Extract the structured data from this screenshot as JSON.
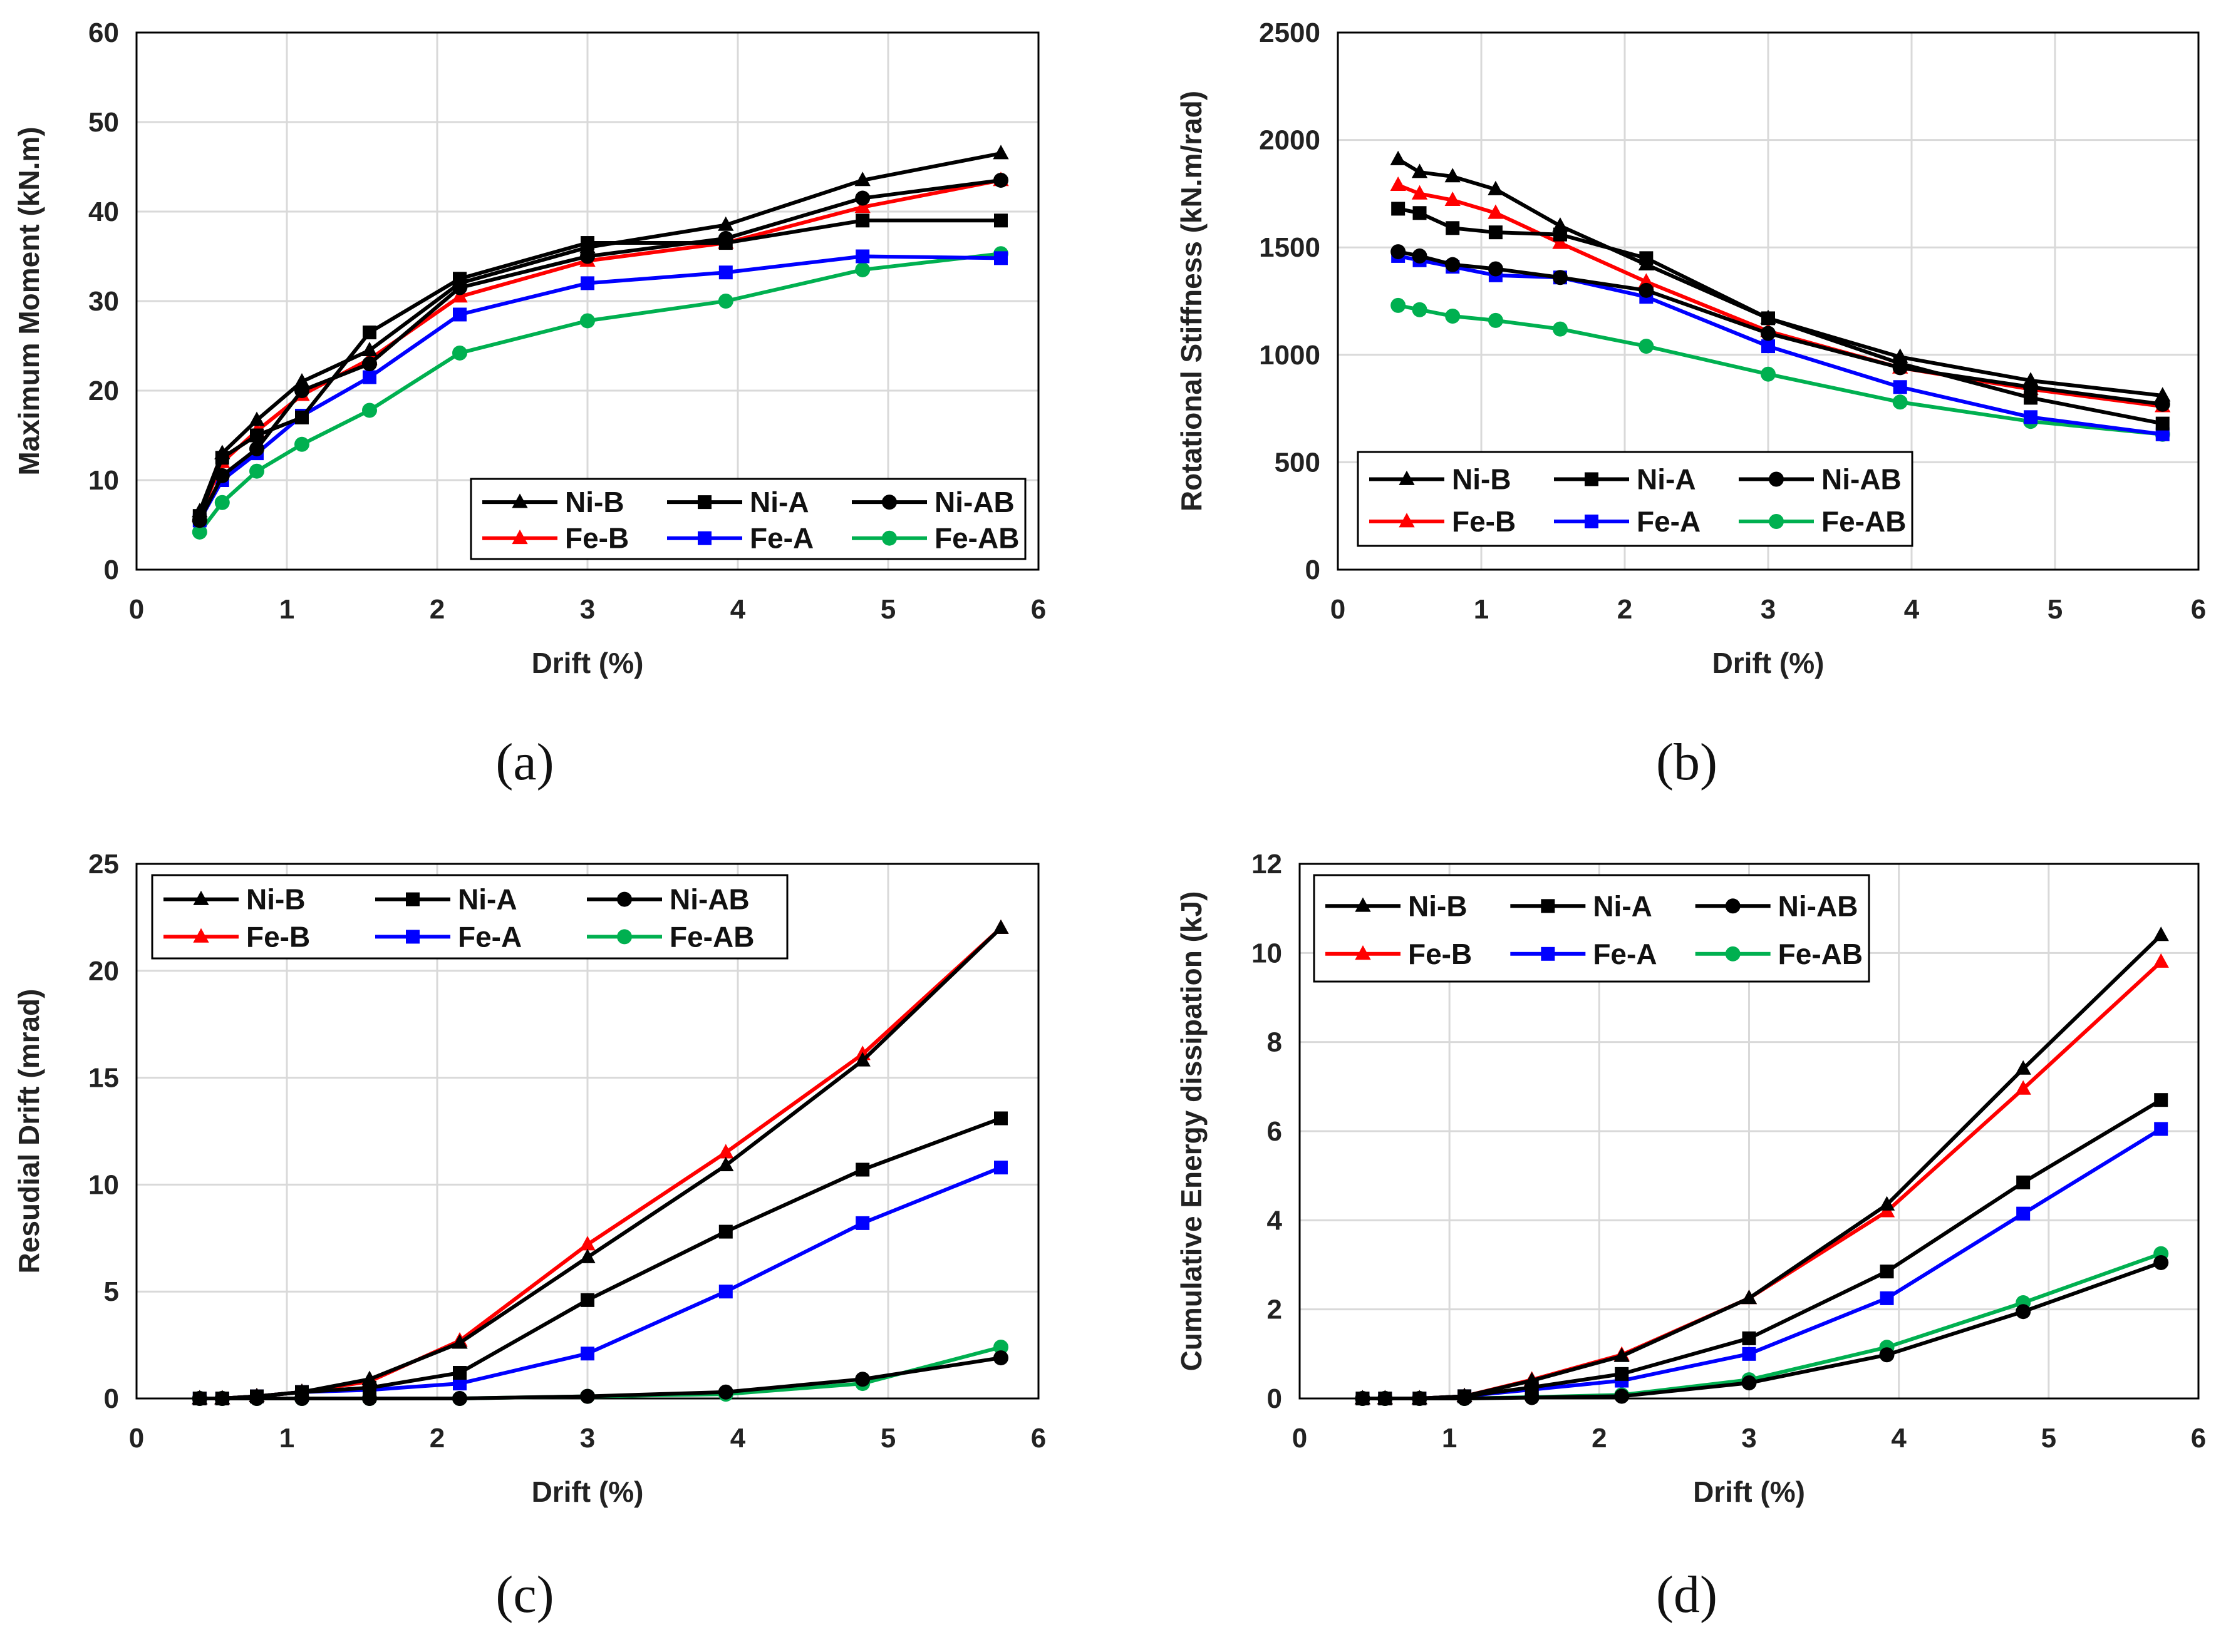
{
  "colors": {
    "Ni-B": "#000000",
    "Ni-A": "#000000",
    "Ni-AB": "#000000",
    "Fe-B": "#ff0000",
    "Fe-A": "#0000ff",
    "Fe-AB": "#00b050",
    "grid": "#d9d9d9",
    "frame": "#000000"
  },
  "markers": {
    "Ni-B": "triangle",
    "Ni-A": "square",
    "Ni-AB": "circle",
    "Fe-B": "triangle",
    "Fe-A": "square",
    "Fe-AB": "circle"
  },
  "chart_data": [
    {
      "panel_label": "(a)",
      "type": "line",
      "xlabel": "Drift (%)",
      "ylabel": "Maximum Moment (kN.m)",
      "xlim": [
        0,
        6
      ],
      "ylim": [
        0,
        60
      ],
      "xticks": [
        0,
        1,
        2,
        3,
        4,
        5,
        6
      ],
      "yticks": [
        0,
        10,
        20,
        30,
        40,
        50,
        60
      ],
      "grid": true,
      "legend_position": "bottom-right",
      "x": [
        0.42,
        0.57,
        0.8,
        1.1,
        1.55,
        2.15,
        3.0,
        3.92,
        4.83,
        5.75
      ],
      "series": [
        {
          "name": "Ni-B",
          "values": [
            6.5,
            13.0,
            16.7,
            21.0,
            24.5,
            32.0,
            36.0,
            38.5,
            43.5,
            46.5
          ]
        },
        {
          "name": "Ni-A",
          "values": [
            6.0,
            12.5,
            15.0,
            17.0,
            26.5,
            32.5,
            36.5,
            36.5,
            39.0,
            39.0
          ]
        },
        {
          "name": "Ni-AB",
          "values": [
            5.5,
            10.5,
            13.5,
            20.0,
            23.0,
            31.5,
            35.0,
            37.0,
            41.5,
            43.5
          ]
        },
        {
          "name": "Fe-B",
          "values": [
            6.0,
            12.0,
            15.5,
            19.5,
            23.5,
            30.5,
            34.5,
            36.5,
            40.5,
            43.5
          ]
        },
        {
          "name": "Fe-A",
          "values": [
            5.5,
            10.0,
            13.0,
            17.2,
            21.5,
            28.5,
            32.0,
            33.2,
            35.0,
            34.8
          ]
        },
        {
          "name": "Fe-AB",
          "values": [
            4.2,
            7.5,
            11.0,
            14.0,
            17.8,
            24.2,
            27.8,
            30.0,
            33.5,
            35.3
          ]
        }
      ]
    },
    {
      "panel_label": "(b)",
      "type": "line",
      "xlabel": "Drift (%)",
      "ylabel": "Rotational Stiffness (kN.m/rad)",
      "xlim": [
        0,
        6
      ],
      "ylim": [
        0,
        2500
      ],
      "xticks": [
        0,
        1,
        2,
        3,
        4,
        5,
        6
      ],
      "yticks": [
        0,
        500,
        1000,
        1500,
        2000,
        2500
      ],
      "grid": true,
      "legend_position": "bottom-left",
      "x": [
        0.42,
        0.57,
        0.8,
        1.1,
        1.55,
        2.15,
        3.0,
        3.92,
        4.83,
        5.75
      ],
      "series": [
        {
          "name": "Ni-B",
          "values": [
            1910,
            1850,
            1830,
            1770,
            1600,
            1420,
            1170,
            990,
            880,
            810
          ]
        },
        {
          "name": "Ni-A",
          "values": [
            1680,
            1660,
            1590,
            1570,
            1560,
            1450,
            1170,
            960,
            800,
            680
          ]
        },
        {
          "name": "Ni-AB",
          "values": [
            1480,
            1460,
            1420,
            1400,
            1360,
            1300,
            1100,
            940,
            850,
            770
          ]
        },
        {
          "name": "Fe-B",
          "values": [
            1790,
            1750,
            1720,
            1660,
            1520,
            1340,
            1110,
            940,
            840,
            760
          ]
        },
        {
          "name": "Fe-A",
          "values": [
            1460,
            1440,
            1410,
            1370,
            1360,
            1270,
            1040,
            850,
            710,
            630
          ]
        },
        {
          "name": "Fe-AB",
          "values": [
            1230,
            1210,
            1180,
            1160,
            1120,
            1040,
            910,
            780,
            690,
            630
          ]
        }
      ]
    },
    {
      "panel_label": "(c)",
      "type": "line",
      "xlabel": "Drift (%)",
      "ylabel": "Resudial Drift (mrad)",
      "xlim": [
        0,
        6
      ],
      "ylim": [
        0,
        25
      ],
      "xticks": [
        0,
        1,
        2,
        3,
        4,
        5,
        6
      ],
      "yticks": [
        0,
        5,
        10,
        15,
        20,
        25
      ],
      "grid": true,
      "legend_position": "top-left",
      "x": [
        0.42,
        0.57,
        0.8,
        1.1,
        1.55,
        2.15,
        3.0,
        3.92,
        4.83,
        5.75
      ],
      "series": [
        {
          "name": "Ni-B",
          "values": [
            0,
            0,
            0.1,
            0.3,
            0.9,
            2.6,
            6.6,
            10.9,
            15.8,
            22.0
          ]
        },
        {
          "name": "Ni-A",
          "values": [
            0,
            0,
            0.1,
            0.3,
            0.5,
            1.2,
            4.6,
            7.8,
            10.7,
            13.1
          ]
        },
        {
          "name": "Ni-AB",
          "values": [
            0,
            0,
            0,
            0,
            0,
            0,
            0.1,
            0.3,
            0.9,
            1.9
          ]
        },
        {
          "name": "Fe-B",
          "values": [
            0,
            0,
            0.1,
            0.3,
            0.8,
            2.7,
            7.2,
            11.5,
            16.1,
            22.0
          ]
        },
        {
          "name": "Fe-A",
          "values": [
            0,
            0,
            0.1,
            0.3,
            0.4,
            0.7,
            2.1,
            5.0,
            8.2,
            10.8
          ]
        },
        {
          "name": "Fe-AB",
          "values": [
            0,
            0,
            0,
            0,
            0,
            0,
            0.1,
            0.2,
            0.7,
            2.4
          ]
        }
      ]
    },
    {
      "panel_label": "(d)",
      "type": "line",
      "xlabel": "Drift (%)",
      "ylabel": "Cumulative Energy dissipation (kJ)",
      "xlim": [
        0,
        6
      ],
      "ylim": [
        0,
        12
      ],
      "xticks": [
        0,
        1,
        2,
        3,
        4,
        5,
        6
      ],
      "yticks": [
        0,
        2,
        4,
        6,
        8,
        10,
        12
      ],
      "grid": true,
      "legend_position": "top-left",
      "x": [
        0.42,
        0.57,
        0.8,
        1.1,
        1.55,
        2.15,
        3.0,
        3.92,
        4.83,
        5.75
      ],
      "series": [
        {
          "name": "Ni-B",
          "values": [
            0,
            0,
            0,
            0.05,
            0.4,
            0.95,
            2.25,
            4.35,
            7.4,
            10.4
          ]
        },
        {
          "name": "Ni-A",
          "values": [
            0,
            0,
            0,
            0.05,
            0.25,
            0.55,
            1.35,
            2.85,
            4.85,
            6.7
          ]
        },
        {
          "name": "Ni-AB",
          "values": [
            0,
            0,
            0,
            0,
            0.02,
            0.05,
            0.35,
            0.98,
            1.95,
            3.05
          ]
        },
        {
          "name": "Fe-B",
          "values": [
            0,
            0,
            0,
            0.05,
            0.42,
            0.98,
            2.25,
            4.2,
            6.95,
            9.8
          ]
        },
        {
          "name": "Fe-A",
          "values": [
            0,
            0,
            0,
            0.05,
            0.2,
            0.4,
            1.0,
            2.25,
            4.15,
            6.05
          ]
        },
        {
          "name": "Fe-AB",
          "values": [
            0,
            0,
            0,
            0,
            0.03,
            0.08,
            0.42,
            1.15,
            2.15,
            3.25
          ]
        }
      ]
    }
  ]
}
